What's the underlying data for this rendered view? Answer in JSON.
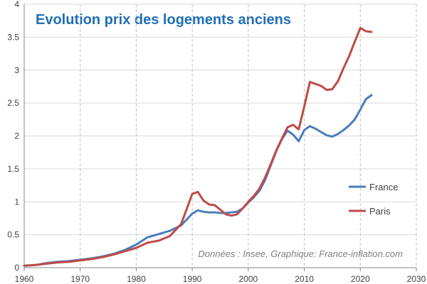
{
  "chart_data": {
    "type": "line",
    "title": "Evolution prix des logements anciens",
    "xlabel": "",
    "ylabel": "",
    "xlim": [
      1960,
      2030
    ],
    "ylim": [
      0,
      4
    ],
    "x_ticks": [
      1960,
      1970,
      1980,
      1990,
      2000,
      2010,
      2020,
      2030
    ],
    "y_ticks": [
      0,
      0.5,
      1,
      1.5,
      2,
      2.5,
      3,
      3.5,
      4
    ],
    "x_tick_labels": [
      "1960",
      "1970",
      "1980",
      "1990",
      "2000",
      "2010",
      "2020",
      "2030"
    ],
    "y_tick_labels": [
      "0",
      "0.5",
      "1",
      "1.5",
      "2",
      "2.5",
      "3",
      "3.5",
      "4"
    ],
    "legend_position": "right",
    "annotation": "Données : Insee, Graphique: France-inflation.com",
    "series": [
      {
        "name": "France",
        "color": "#4a7ebb",
        "x": [
          1960,
          1962,
          1964,
          1966,
          1968,
          1970,
          1972,
          1974,
          1976,
          1978,
          1980,
          1982,
          1984,
          1986,
          1988,
          1990,
          1991,
          1992,
          1993,
          1994,
          1995,
          1996,
          1997,
          1998,
          1999,
          2000,
          2001,
          2002,
          2003,
          2004,
          2005,
          2006,
          2007,
          2008,
          2009,
          2010,
          2011,
          2012,
          2013,
          2014,
          2015,
          2016,
          2017,
          2018,
          2019,
          2020,
          2021,
          2022
        ],
        "y": [
          0.03,
          0.04,
          0.07,
          0.09,
          0.1,
          0.12,
          0.14,
          0.17,
          0.21,
          0.27,
          0.35,
          0.46,
          0.51,
          0.56,
          0.64,
          0.82,
          0.87,
          0.85,
          0.84,
          0.84,
          0.83,
          0.83,
          0.84,
          0.85,
          0.9,
          0.99,
          1.07,
          1.17,
          1.33,
          1.55,
          1.77,
          1.95,
          2.08,
          2.02,
          1.92,
          2.09,
          2.15,
          2.11,
          2.06,
          2.01,
          1.99,
          2.03,
          2.09,
          2.16,
          2.25,
          2.4,
          2.56,
          2.62
        ]
      },
      {
        "name": "Paris",
        "color": "#be4b48",
        "x": [
          1960,
          1962,
          1964,
          1966,
          1968,
          1970,
          1972,
          1974,
          1976,
          1978,
          1980,
          1982,
          1984,
          1986,
          1988,
          1989,
          1990,
          1991,
          1992,
          1993,
          1994,
          1995,
          1996,
          1997,
          1998,
          1999,
          2000,
          2001,
          2002,
          2003,
          2004,
          2005,
          2006,
          2007,
          2008,
          2009,
          2010,
          2011,
          2012,
          2013,
          2014,
          2015,
          2016,
          2017,
          2018,
          2019,
          2020,
          2021,
          2022
        ],
        "y": [
          0.03,
          0.04,
          0.06,
          0.08,
          0.09,
          0.11,
          0.13,
          0.16,
          0.2,
          0.25,
          0.3,
          0.38,
          0.41,
          0.48,
          0.66,
          0.89,
          1.12,
          1.15,
          1.02,
          0.96,
          0.95,
          0.88,
          0.81,
          0.79,
          0.81,
          0.9,
          1.0,
          1.09,
          1.2,
          1.37,
          1.57,
          1.78,
          1.96,
          2.13,
          2.17,
          2.1,
          2.45,
          2.82,
          2.79,
          2.76,
          2.7,
          2.71,
          2.83,
          3.03,
          3.21,
          3.43,
          3.64,
          3.59,
          3.58
        ]
      }
    ]
  }
}
